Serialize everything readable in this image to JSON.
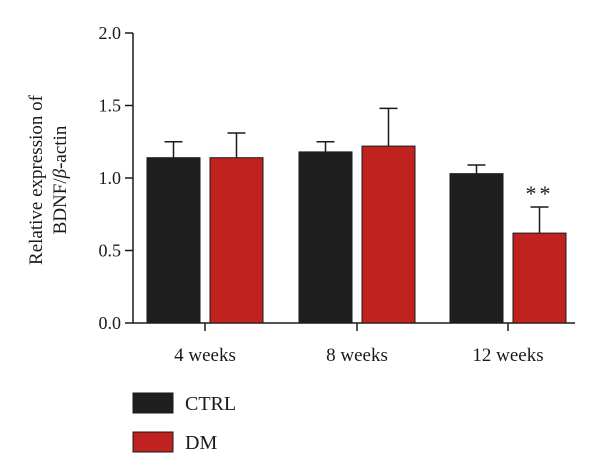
{
  "chart_data": {
    "type": "bar",
    "categories": [
      "4 weeks",
      "8 weeks",
      "12 weeks"
    ],
    "series": [
      {
        "name": "CTRL",
        "color": "#1f1f1f",
        "values": [
          1.14,
          1.18,
          1.03
        ],
        "errors": [
          0.11,
          0.07,
          0.06
        ]
      },
      {
        "name": "DM",
        "color": "#c0231f",
        "values": [
          1.14,
          1.22,
          0.62
        ],
        "errors": [
          0.17,
          0.26,
          0.18
        ]
      }
    ],
    "ylabel_line1": "Relative expression of",
    "ylabel_line2_prefix": "BDNF/",
    "ylabel_line2_beta": "β",
    "ylabel_line2_suffix": "-actin",
    "ylim": [
      0.0,
      2.0
    ],
    "yticks": [
      "0.0",
      "0.5",
      "1.0",
      "1.5",
      "2.0"
    ],
    "ytick_values": [
      0.0,
      0.5,
      1.0,
      1.5,
      2.0
    ],
    "annotations": [
      {
        "text": "**",
        "category": "12 weeks",
        "series": "DM"
      }
    ],
    "legend_position": "bottom-left"
  }
}
